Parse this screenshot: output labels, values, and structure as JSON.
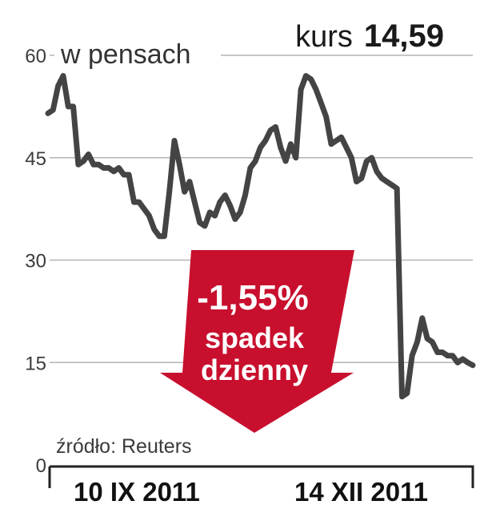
{
  "chart_data": {
    "type": "line",
    "ylabel": "w pensach",
    "ylim": [
      0,
      60
    ],
    "yticks": [
      0,
      15,
      30,
      45,
      60
    ],
    "grid": true,
    "xlabels": [
      "10 IX 2011",
      "14 XII 2011"
    ],
    "series": [
      {
        "values": [
          51.5,
          52.0,
          55.5,
          57.0,
          52.5,
          52.5,
          44.0,
          44.5,
          45.5,
          44.0,
          44.0,
          43.5,
          43.5,
          43.0,
          43.5,
          42.5,
          42.5,
          38.5,
          38.5,
          37.5,
          36.5,
          34.5,
          33.5,
          33.5,
          40.0,
          47.5,
          44.0,
          40.0,
          41.5,
          38.5,
          35.5,
          35.0,
          37.0,
          36.5,
          38.5,
          39.5,
          38.0,
          36.0,
          37.0,
          39.5,
          43.5,
          44.5,
          46.5,
          47.5,
          49.0,
          49.5,
          46.5,
          44.5,
          47.0,
          45.0,
          55.0,
          57.0,
          56.5,
          55.0,
          53.0,
          51.0,
          47.0,
          47.5,
          48.0,
          46.5,
          45.0,
          41.5,
          42.0,
          44.5,
          45.0,
          43.0,
          42.0,
          41.5,
          41.0,
          40.5,
          10.0,
          10.5,
          16.0,
          18.0,
          21.5,
          18.5,
          18.0,
          16.5,
          16.5,
          16.0,
          16.0,
          15.0,
          15.5,
          15.0,
          14.59
        ]
      }
    ]
  },
  "header": {
    "kurs_label": "kurs",
    "kurs_value": "14,59"
  },
  "arrow": {
    "change": "-1,55%",
    "line1": "spadek",
    "line2": "dzienny",
    "color": "#c8102e"
  },
  "source": "źródło: Reuters",
  "colors": {
    "line": "#444444",
    "grid": "#b4b4b4",
    "axis": "#222222"
  }
}
